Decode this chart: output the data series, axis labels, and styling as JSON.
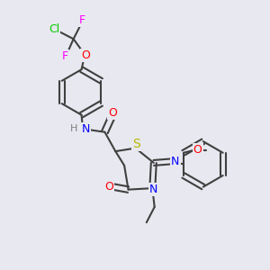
{
  "background_color": "#e8e8f0",
  "atom_colors": {
    "C": "#404040",
    "N": "#0000ff",
    "O": "#ff0000",
    "S": "#b8b800",
    "F": "#ff00ff",
    "Cl": "#00cc00",
    "H": "#808080"
  },
  "bond_color": "#404040",
  "bond_width": 1.5,
  "figsize": [
    3.0,
    3.0
  ],
  "dpi": 100
}
